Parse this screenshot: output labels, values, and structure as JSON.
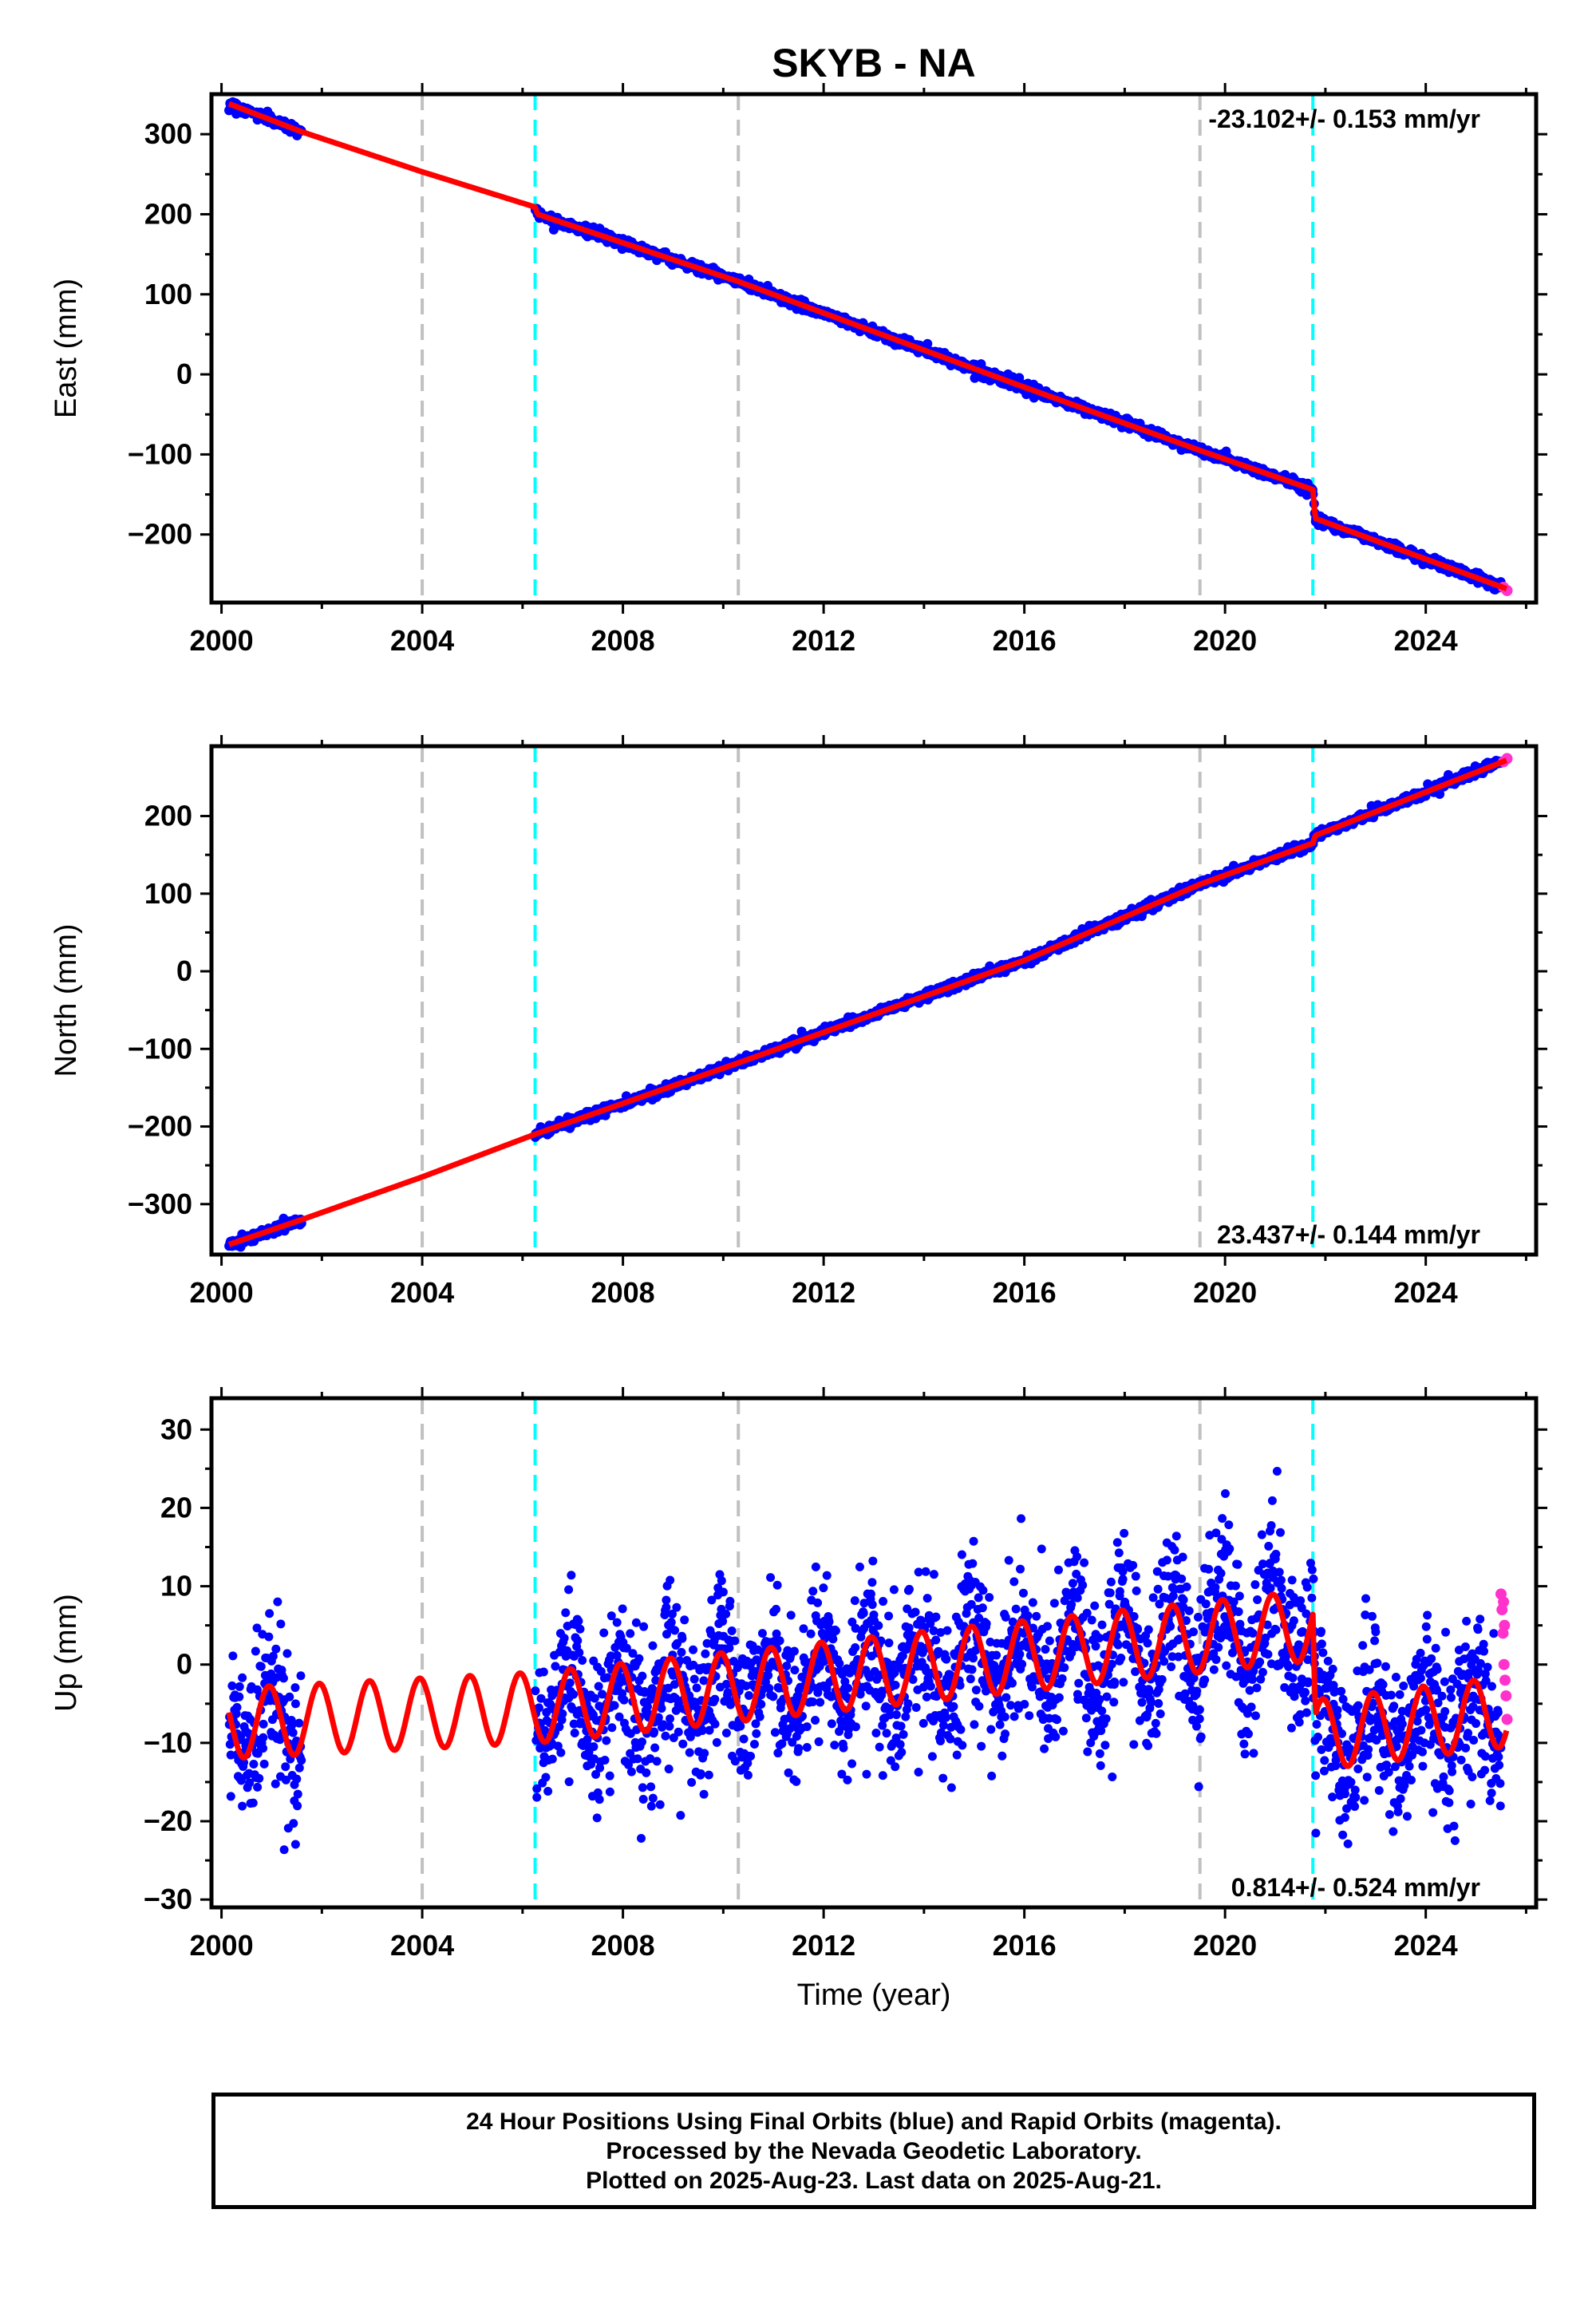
{
  "title": "SKYB - NA",
  "colors": {
    "final_orbits": "#0000ff",
    "rapid_orbits": "#ff33cc",
    "model": "#ff0000",
    "gray_marker": "#c0c0c0",
    "cyan_marker": "#00ffff"
  },
  "markers": {
    "gray": [
      2004.0,
      2010.3,
      2019.5
    ],
    "cyan": [
      2006.25,
      2021.75
    ]
  },
  "caption": {
    "line1": "24 Hour Positions Using Final Orbits (blue) and Rapid Orbits (magenta).",
    "line2": "Processed by the Nevada Geodetic Laboratory.",
    "line3": "Plotted on 2025-Aug-23. Last data on 2025-Aug-21."
  },
  "chart_data": [
    {
      "type": "scatter",
      "ylabel": "East (mm)",
      "xlabel": "",
      "xlim": [
        1999.8,
        2026.2
      ],
      "ylim": [
        -285,
        350
      ],
      "xticks": [
        2000,
        2004,
        2008,
        2012,
        2016,
        2020,
        2024
      ],
      "yticks": [
        300,
        200,
        100,
        0,
        -100,
        -200
      ],
      "rate_label": "-23.102+/- 0.153 mm/yr",
      "rate_position": "top-right",
      "model_line": [
        [
          2000.15,
          338
        ],
        [
          2001.6,
          303
        ],
        [
          2004.0,
          253
        ],
        [
          2006.25,
          209
        ],
        [
          2006.3,
          200
        ],
        [
          2010.3,
          116
        ],
        [
          2016.0,
          -16
        ],
        [
          2019.5,
          -95
        ],
        [
          2021.75,
          -144
        ],
        [
          2021.8,
          -180
        ],
        [
          2025.62,
          -268
        ]
      ],
      "gap": [
        2001.6,
        2006.25
      ],
      "noise_mm": 3,
      "rapid_points": [
        [
          2025.55,
          -266
        ],
        [
          2025.62,
          -270
        ]
      ]
    },
    {
      "type": "scatter",
      "ylabel": "North (mm)",
      "xlabel": "",
      "xlim": [
        1999.8,
        2026.2
      ],
      "ylim": [
        -365,
        290
      ],
      "xticks": [
        2000,
        2004,
        2008,
        2012,
        2016,
        2020,
        2024
      ],
      "yticks": [
        200,
        100,
        0,
        -100,
        -200,
        -300
      ],
      "rate_label": "23.437+/- 0.144 mm/yr",
      "rate_position": "bottom-right",
      "model_line": [
        [
          2000.15,
          -352
        ],
        [
          2001.6,
          -320
        ],
        [
          2004.0,
          -265
        ],
        [
          2006.25,
          -210
        ],
        [
          2010.3,
          -118
        ],
        [
          2016.0,
          14
        ],
        [
          2019.5,
          112
        ],
        [
          2021.75,
          165
        ],
        [
          2021.8,
          175
        ],
        [
          2025.62,
          272
        ]
      ],
      "gap": [
        2001.6,
        2006.25
      ],
      "noise_mm": 3,
      "rapid_points": [
        [
          2025.55,
          270
        ],
        [
          2025.62,
          274
        ]
      ]
    },
    {
      "type": "scatter",
      "ylabel": "Up (mm)",
      "xlabel": "Time (year)",
      "xlim": [
        1999.8,
        2026.2
      ],
      "ylim": [
        -31,
        34
      ],
      "xticks": [
        2000,
        2004,
        2008,
        2012,
        2016,
        2020,
        2024
      ],
      "yticks": [
        30,
        20,
        10,
        0,
        -10,
        -20,
        -30
      ],
      "rate_label": "0.814+/- 0.524 mm/yr",
      "rate_position": "bottom-right",
      "seasonal_amplitude_mm": 4.5,
      "trend_segments": [
        [
          2000.15,
          -7.5
        ],
        [
          2006.25,
          -5.5
        ],
        [
          2006.3,
          -5.5
        ],
        [
          2021.75,
          5.0
        ],
        [
          2021.8,
          -9.0
        ],
        [
          2025.62,
          -6.0
        ]
      ],
      "gap": [
        2001.6,
        2006.25
      ],
      "noise_mm": 5,
      "rapid_points": [
        [
          2025.5,
          9
        ],
        [
          2025.52,
          7
        ],
        [
          2025.54,
          4
        ],
        [
          2025.56,
          0
        ],
        [
          2025.58,
          -2
        ],
        [
          2025.6,
          -4
        ],
        [
          2025.62,
          -7
        ],
        [
          2025.55,
          8
        ],
        [
          2025.57,
          5
        ]
      ]
    }
  ]
}
